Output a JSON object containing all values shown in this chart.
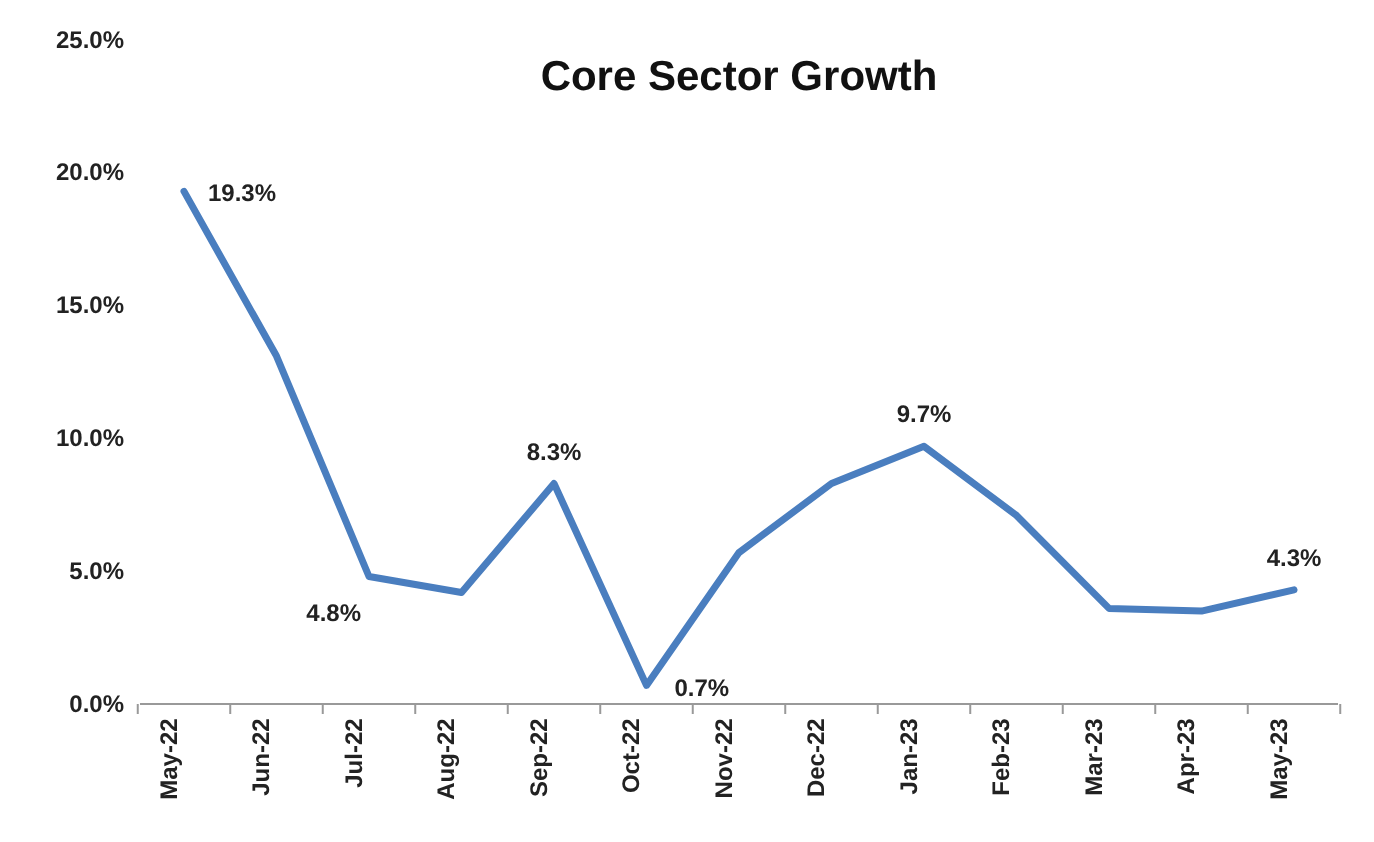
{
  "chart_data": {
    "type": "line",
    "title": "Core Sector Growth",
    "categories": [
      "May-22",
      "Jun-22",
      "Jul-22",
      "Aug-22",
      "Sep-22",
      "Oct-22",
      "Nov-22",
      "Dec-22",
      "Jan-23",
      "Feb-23",
      "Mar-23",
      "Apr-23",
      "May-23"
    ],
    "series": [
      {
        "color": "#4a7ebf",
        "values": [
          19.3,
          13.1,
          4.8,
          4.2,
          8.3,
          0.7,
          5.7,
          8.3,
          9.7,
          7.1,
          3.6,
          3.5,
          4.3
        ],
        "value_labels": [
          "19.3%",
          null,
          "4.8%",
          null,
          "8.3%",
          "0.7%",
          null,
          null,
          "9.7%",
          null,
          null,
          null,
          "4.3%"
        ]
      }
    ],
    "ylim": [
      0,
      25
    ],
    "yticks": [
      {
        "value": 0,
        "label": "0.0%"
      },
      {
        "value": 5,
        "label": "5.0%"
      },
      {
        "value": 10,
        "label": "10.0%"
      },
      {
        "value": 15,
        "label": "15.0%"
      },
      {
        "value": 20,
        "label": "20.0%"
      },
      {
        "value": 25,
        "label": "25.0%"
      }
    ],
    "grid": false,
    "marker": "none",
    "line_style": "solid"
  }
}
